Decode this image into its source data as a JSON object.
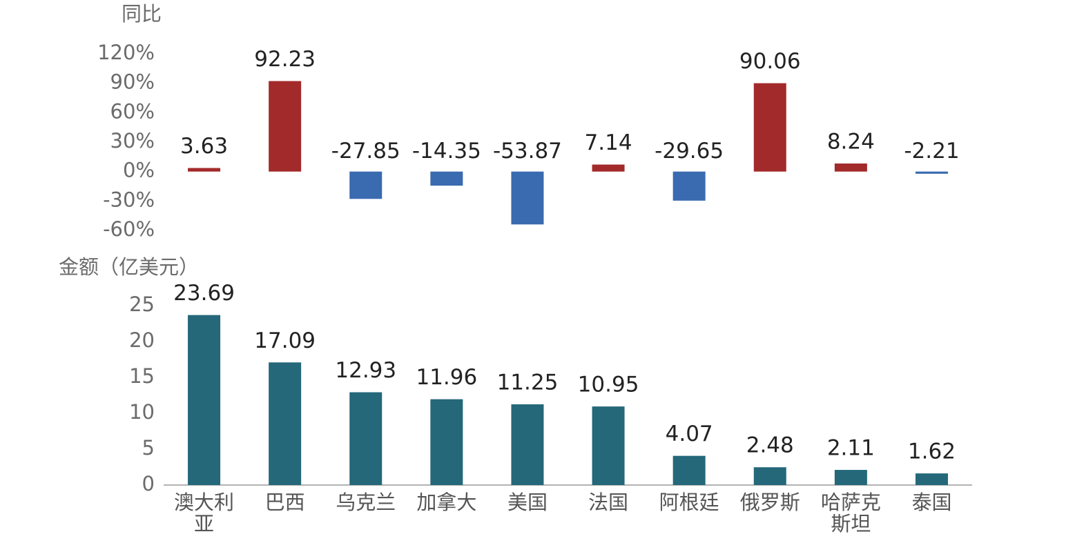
{
  "chart_data": [
    {
      "type": "bar",
      "y_label": "同比",
      "categories": [
        "澳大利亚",
        "巴西",
        "乌克兰",
        "加拿大",
        "美国",
        "法国",
        "阿根廷",
        "俄罗斯",
        "哈萨克斯坦",
        "泰国"
      ],
      "values": [
        3.63,
        92.23,
        -27.85,
        -14.35,
        -53.87,
        7.14,
        -29.65,
        90.06,
        8.24,
        -2.21
      ],
      "positive_color": "#a32a2a",
      "negative_color": "#3a6ab0",
      "ylim": [
        -60,
        120
      ],
      "yticks": [
        {
          "value": 120,
          "label": "120%"
        },
        {
          "value": 90,
          "label": "90%"
        },
        {
          "value": 60,
          "label": "60%"
        },
        {
          "value": 30,
          "label": "30%"
        },
        {
          "value": 0,
          "label": "0%"
        },
        {
          "value": -30,
          "label": "-30%"
        },
        {
          "value": -60,
          "label": "-60%"
        }
      ]
    },
    {
      "type": "bar",
      "y_label": "金额（亿美元）",
      "categories": [
        "澳大利亚",
        "巴西",
        "乌克兰",
        "加拿大",
        "美国",
        "法国",
        "阿根廷",
        "俄罗斯",
        "哈萨克斯坦",
        "泰国"
      ],
      "values": [
        23.69,
        17.09,
        12.93,
        11.96,
        11.25,
        10.95,
        4.07,
        2.48,
        2.11,
        1.62
      ],
      "color": "#24687a",
      "ylim": [
        0,
        25
      ],
      "yticks": [
        25,
        20,
        15,
        10,
        5,
        0
      ]
    }
  ]
}
